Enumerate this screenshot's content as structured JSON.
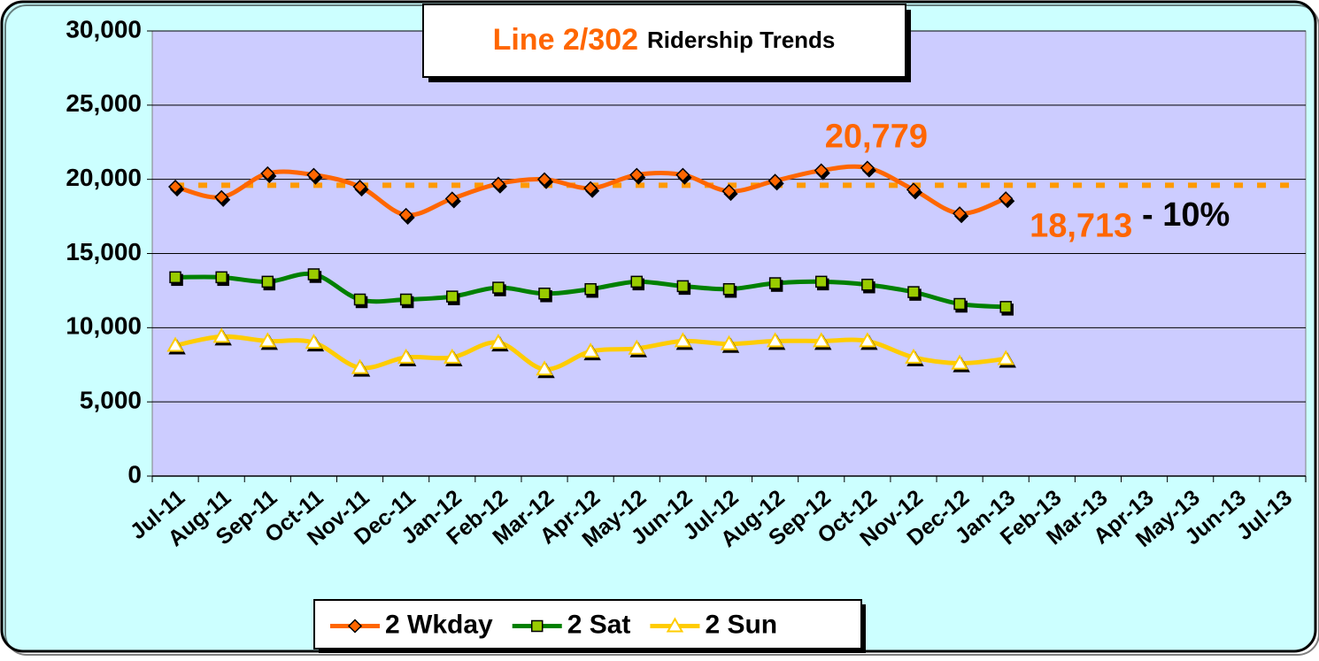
{
  "chart_data": {
    "type": "line",
    "title": "Line 2/302",
    "subtitle": "Ridership Trends",
    "categories": [
      "Jul-11",
      "Aug-11",
      "Sep-11",
      "Oct-11",
      "Nov-11",
      "Dec-11",
      "Jan-12",
      "Feb-12",
      "Mar-12",
      "Apr-12",
      "May-12",
      "Jun-12",
      "Jul-12",
      "Aug-12",
      "Sep-12",
      "Oct-12",
      "Nov-12",
      "Dec-12",
      "Jan-13",
      "Feb-13",
      "Mar-13",
      "Apr-13",
      "May-13",
      "Jun-13",
      "Jul-13"
    ],
    "series": [
      {
        "name": "2 Wkday",
        "color": "#ff6600",
        "marker": "diamond",
        "values": [
          19500,
          18800,
          20400,
          20300,
          19500,
          17600,
          18700,
          19700,
          20000,
          19400,
          20300,
          20300,
          19200,
          19900,
          20600,
          20779,
          19300,
          17700,
          18713,
          null,
          null,
          null,
          null,
          null,
          null
        ],
        "value_labels": [
          null,
          null,
          null,
          null,
          null,
          null,
          null,
          null,
          null,
          null,
          null,
          null,
          null,
          null,
          null,
          "20,779",
          null,
          null,
          "18,713",
          null,
          null,
          null,
          null,
          null,
          null
        ]
      },
      {
        "name": "2 Sat",
        "color": "#008000",
        "marker": "square",
        "values": [
          13400,
          13400,
          13100,
          13600,
          11900,
          11900,
          12100,
          12700,
          12300,
          12600,
          13100,
          12800,
          12600,
          13000,
          13100,
          12900,
          12400,
          11600,
          11400,
          null,
          null,
          null,
          null,
          null,
          null
        ]
      },
      {
        "name": "2 Sun",
        "color": "#ffcc00",
        "marker": "triangle",
        "values": [
          8800,
          9400,
          9100,
          9000,
          7300,
          8000,
          8000,
          9000,
          7200,
          8400,
          8600,
          9100,
          8900,
          9100,
          9100,
          9100,
          8000,
          7600,
          7900,
          null,
          null,
          null,
          null,
          null,
          null
        ]
      }
    ],
    "reference_value": 19600,
    "reference_color": "#ff9900",
    "annotation": "- 10%",
    "ylim": [
      0,
      30000
    ],
    "yticks": [
      0,
      {
        "value": 5000,
        "label": "5,000"
      },
      {
        "value": 10000,
        "label": "10,000"
      },
      {
        "value": 15000,
        "label": "15,000"
      },
      {
        "value": 20000,
        "label": "20,000"
      },
      {
        "value": 25000,
        "label": "25,000"
      },
      {
        "value": 30000,
        "label": "30,000"
      }
    ],
    "grid": true,
    "legend": "bottom",
    "plot_color": "#ccccff",
    "background_color": "#ccffff"
  }
}
